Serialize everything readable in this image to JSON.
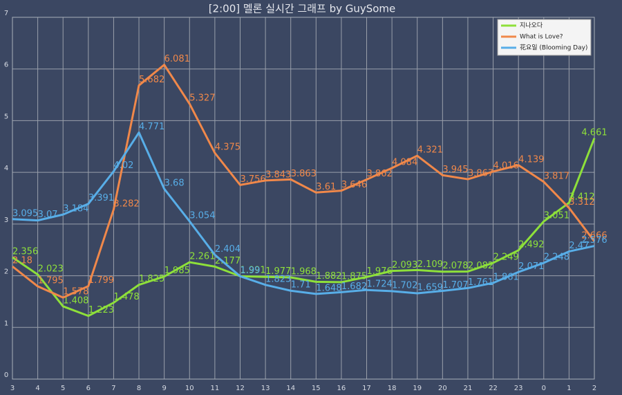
{
  "chart_data": {
    "type": "line",
    "title": "[2:00] 멜론 실시간 그래프 by GuySome",
    "categories": [
      "3",
      "4",
      "5",
      "6",
      "7",
      "8",
      "9",
      "10",
      "11",
      "12",
      "13",
      "14",
      "15",
      "16",
      "17",
      "18",
      "19",
      "20",
      "21",
      "22",
      "23",
      "0",
      "1",
      "2"
    ],
    "series": [
      {
        "name": "지나오다",
        "color": "#8ee03a",
        "values": [
          2.356,
          2.023,
          1.408,
          1.223,
          1.478,
          1.825,
          1.985,
          2.261,
          2.177,
          1.991,
          1.977,
          1.968,
          1.882,
          1.875,
          1.976,
          2.093,
          2.109,
          2.078,
          2.082,
          2.249,
          2.492,
          3.051,
          3.412,
          4.661
        ]
      },
      {
        "name": "What is Love?",
        "color": "#f0884a",
        "values": [
          2.18,
          1.795,
          1.578,
          1.799,
          3.282,
          5.682,
          6.081,
          5.327,
          4.375,
          3.756,
          3.843,
          3.863,
          3.61,
          3.646,
          3.862,
          4.084,
          4.321,
          3.945,
          3.867,
          4.016,
          4.139,
          3.817,
          3.312,
          2.666
        ]
      },
      {
        "name": "花요일 (Blooming Day)",
        "color": "#58aee8",
        "values": [
          3.095,
          3.07,
          3.184,
          3.391,
          4.02,
          4.771,
          3.68,
          3.054,
          2.404,
          1.99,
          1.823,
          1.71,
          1.648,
          1.682,
          1.724,
          1.702,
          1.659,
          1.707,
          1.761,
          1.861,
          2.071,
          2.248,
          2.47,
          2.576
        ]
      }
    ],
    "ylim": [
      0,
      7
    ],
    "yticks": [
      0,
      1,
      2,
      3,
      4,
      5,
      6,
      7
    ],
    "grid": true,
    "legend": "upper right"
  }
}
